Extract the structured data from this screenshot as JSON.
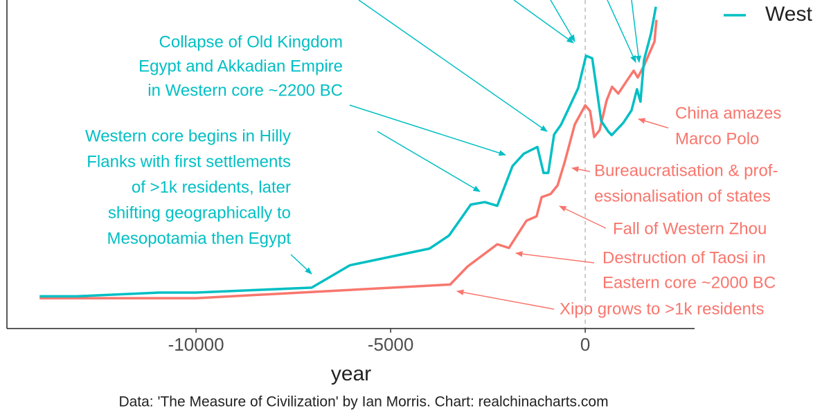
{
  "chart_data": {
    "type": "line",
    "x_label": "year",
    "caption": "Data: 'The Measure of Civilization' by Ian Morris. Chart: realchinacharts.com",
    "xlim": [
      -14860,
      2810
    ],
    "xticks": [
      -10000,
      -5000,
      0
    ],
    "ylim": [
      -0.8,
      52.2
    ],
    "reference_line_x": 0,
    "legend": "top-right",
    "series": [
      {
        "color": "#f8766d",
        "x": [
          -14020,
          -10000,
          -3470,
          -3025,
          -2260,
          -1960,
          -1510,
          -1250,
          -1120,
          -890,
          -710,
          -530,
          -270,
          0,
          125,
          230,
          370,
          550,
          690,
          850,
          1030,
          1245,
          1350,
          1510,
          1780,
          1830
        ],
        "values": [
          4.1,
          4.1,
          6.3,
          9.2,
          12.8,
          12.2,
          16.6,
          17.3,
          20.4,
          20.9,
          22.3,
          26.0,
          32.1,
          35.2,
          34.3,
          30.1,
          31.2,
          36.0,
          38.2,
          37.1,
          38.8,
          40.8,
          39.7,
          41.6,
          45.5,
          49.0
        ]
      },
      {
        "name": "West",
        "color": "#00bfc4",
        "x": [
          -14020,
          -13080,
          -10940,
          -10000,
          -7030,
          -6050,
          -4000,
          -3500,
          -2940,
          -2580,
          -2260,
          -1870,
          -1580,
          -1230,
          -1070,
          -950,
          -800,
          -620,
          -410,
          -180,
          20,
          180,
          270,
          410,
          590,
          680,
          980,
          1190,
          1330,
          1420,
          1510,
          1690,
          1815
        ],
        "values": [
          4.4,
          4.4,
          5.0,
          5.0,
          5.8,
          9.4,
          12.1,
          14.2,
          19.2,
          19.6,
          19.0,
          25.4,
          27.4,
          28.5,
          24.3,
          24.3,
          30.5,
          32.1,
          34.9,
          38.0,
          43.2,
          42.8,
          38.9,
          32.7,
          31.0,
          30.4,
          32.4,
          34.4,
          37.8,
          35.8,
          42.5,
          46.8,
          51.1
        ]
      }
    ],
    "annotations": [
      {
        "color": "#00bfc4",
        "lines": [
          "Collapse of Old Kingdom",
          "Egypt and Akkadian Empire",
          "in Western core ~2200 BC"
        ]
      },
      {
        "color": "#00bfc4",
        "lines": [
          "Western core begins in Hilly",
          "Flanks with first settlements",
          "of >1k residents, later",
          "shifting geographically to",
          "Mesopotamia then Egypt"
        ]
      },
      {
        "color": "#f8766d",
        "lines": [
          "China amazes",
          "Marco Polo"
        ]
      },
      {
        "color": "#f8766d",
        "lines": [
          "Bureaucratisation & prof-",
          "essionalisation of states"
        ]
      },
      {
        "color": "#f8766d",
        "lines": [
          "Fall of Western Zhou"
        ]
      },
      {
        "color": "#f8766d",
        "lines": [
          "Destruction of Taosi in",
          "Eastern core ~2000 BC"
        ]
      },
      {
        "color": "#f8766d",
        "lines": [
          "Xipo grows to >1k residents"
        ]
      }
    ]
  }
}
